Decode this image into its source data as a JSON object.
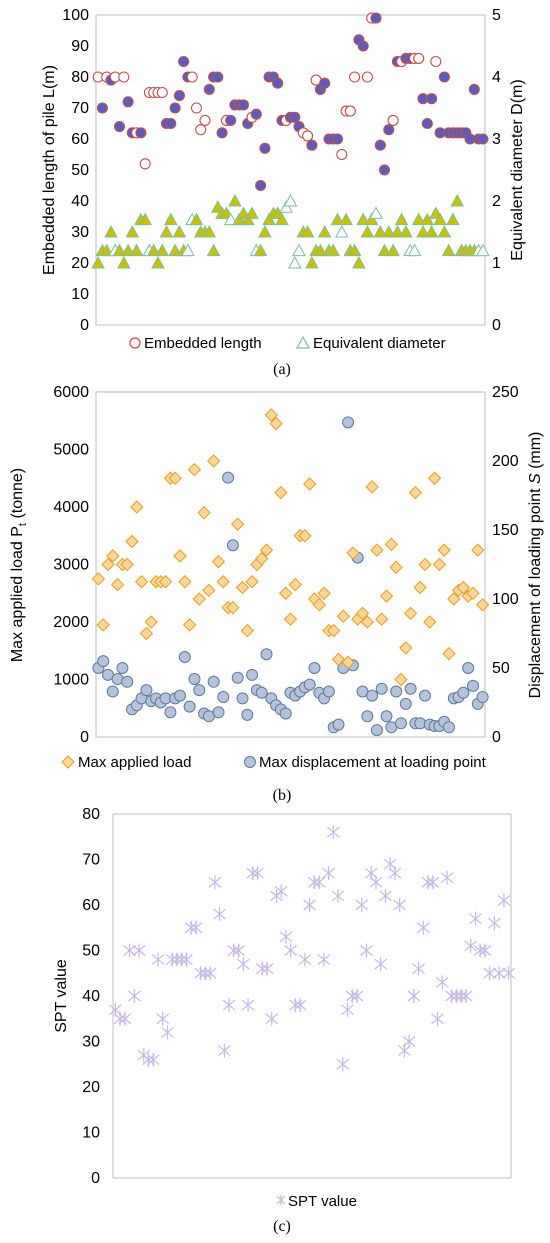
{
  "chart_data": [
    {
      "type": "scatter",
      "caption": "(a)",
      "ylabel": "Embedded length of pile L(m)",
      "y2label": "Equivalent diameter D(m)",
      "ylim": [
        0,
        100
      ],
      "y2lim": [
        0,
        5
      ],
      "yticks": [
        "0",
        "10",
        "20",
        "30",
        "40",
        "50",
        "60",
        "70",
        "80",
        "90",
        "100"
      ],
      "y2ticks": [
        "0",
        "1",
        "2",
        "3",
        "4",
        "5"
      ],
      "legend_position": "bottom",
      "colors": {
        "length_edge": "#c0504d",
        "length_fill": "#5b5bc0",
        "diam_edge": "#7fbf9a",
        "diam_fill": "#c8c000"
      },
      "series": [
        {
          "name": "Embedded length",
          "axis": "left",
          "marker": "circle",
          "y": [
            80,
            70,
            80,
            79,
            80,
            64,
            80,
            72,
            62,
            62,
            62,
            52,
            75,
            75,
            75,
            75,
            65,
            65,
            70,
            74,
            85,
            80,
            80,
            70,
            63,
            66,
            76,
            80,
            80,
            62,
            66,
            66,
            71,
            71,
            71,
            65,
            67,
            68,
            45,
            57,
            80,
            80,
            78,
            66,
            66,
            67,
            67,
            64,
            62,
            61,
            58,
            79,
            76,
            78,
            60,
            60,
            60,
            55,
            69,
            69,
            80,
            92,
            90,
            80,
            99,
            99,
            58,
            50,
            63,
            66,
            85,
            85,
            86,
            86,
            86,
            86,
            73,
            65,
            73,
            85,
            62,
            80,
            62,
            62,
            62,
            62,
            62,
            60,
            76,
            60,
            60
          ],
          "filled": [
            0,
            1,
            0,
            1,
            0,
            1,
            0,
            1,
            1,
            0,
            1,
            0,
            0,
            0,
            0,
            0,
            1,
            1,
            1,
            1,
            1,
            1,
            0,
            0,
            0,
            0,
            1,
            1,
            1,
            1,
            0,
            1,
            1,
            1,
            1,
            1,
            0,
            1,
            1,
            1,
            1,
            1,
            1,
            1,
            0,
            1,
            1,
            1,
            0,
            0,
            1,
            0,
            1,
            1,
            1,
            1,
            1,
            0,
            0,
            0,
            0,
            1,
            1,
            0,
            0,
            1,
            1,
            1,
            1,
            0,
            1,
            0,
            1,
            1,
            0,
            0,
            1,
            1,
            1,
            0,
            1,
            1,
            1,
            1,
            1,
            1,
            1,
            1,
            1,
            1,
            1
          ]
        },
        {
          "name": "Equivalent diameter",
          "axis": "right",
          "marker": "triangle",
          "y": [
            1.0,
            1.2,
            1.2,
            1.5,
            1.2,
            1.2,
            1.0,
            1.2,
            1.5,
            1.2,
            1.7,
            1.7,
            1.2,
            1.2,
            1.0,
            1.2,
            1.5,
            1.7,
            1.2,
            1.5,
            1.2,
            1.2,
            1.7,
            1.7,
            1.5,
            1.5,
            1.5,
            1.2,
            1.9,
            1.8,
            1.8,
            1.7,
            2.0,
            1.7,
            1.8,
            1.7,
            1.8,
            1.2,
            1.2,
            1.5,
            1.7,
            1.8,
            1.8,
            1.7,
            1.9,
            2.0,
            1.0,
            1.2,
            1.5,
            1.5,
            1.0,
            1.2,
            1.2,
            1.5,
            1.2,
            1.2,
            1.7,
            1.5,
            1.7,
            1.2,
            1.2,
            1.0,
            1.7,
            1.5,
            1.7,
            1.8,
            1.5,
            1.2,
            1.5,
            1.2,
            1.5,
            1.7,
            1.5,
            1.2,
            1.2,
            1.7,
            1.5,
            1.7,
            1.5,
            1.8,
            1.7,
            1.5,
            1.2,
            1.7,
            2.0,
            1.2,
            1.2,
            1.2,
            1.2,
            1.2,
            1.2
          ],
          "filled": [
            1,
            1,
            1,
            1,
            0,
            1,
            1,
            1,
            1,
            1,
            1,
            1,
            0,
            1,
            1,
            1,
            1,
            1,
            1,
            1,
            1,
            0,
            0,
            1,
            1,
            1,
            1,
            1,
            1,
            1,
            1,
            0,
            1,
            1,
            1,
            1,
            1,
            0,
            1,
            1,
            1,
            1,
            1,
            1,
            0,
            0,
            0,
            0,
            1,
            1,
            1,
            1,
            1,
            1,
            1,
            1,
            1,
            0,
            1,
            1,
            1,
            1,
            1,
            1,
            1,
            0,
            1,
            1,
            1,
            1,
            1,
            1,
            1,
            0,
            0,
            1,
            1,
            1,
            1,
            1,
            1,
            1,
            1,
            1,
            1,
            1,
            1,
            1,
            1,
            0,
            0
          ]
        }
      ]
    },
    {
      "type": "scatter",
      "caption": "(b)",
      "ylabel_main": "Max applied load P",
      "ylabel_sub": "t",
      "ylabel_tail": " (tonne)",
      "y2label_main": "Displacement of loading point ",
      "y2label_italic": "S",
      "y2label_tail": " (mm)",
      "ylim": [
        0,
        6000
      ],
      "y2lim": [
        0,
        250
      ],
      "yticks": [
        "0",
        "1000",
        "2000",
        "3000",
        "4000",
        "5000",
        "6000"
      ],
      "y2ticks": [
        "0",
        "50",
        "100",
        "150",
        "200",
        "250"
      ],
      "legend_position": "bottom",
      "colors": {
        "load_edge": "#e6a020",
        "load_fill": "#fbd79a",
        "disp_edge": "#5f7a99",
        "disp_fill": "#b4c3db"
      },
      "series": [
        {
          "name": "Max applied load",
          "axis": "left",
          "marker": "diamond",
          "y": [
            2750,
            1950,
            3000,
            3150,
            2650,
            3000,
            3000,
            3400,
            4000,
            2700,
            1800,
            2000,
            2700,
            2700,
            2700,
            4500,
            4500,
            3150,
            2700,
            1950,
            4650,
            2400,
            3900,
            2550,
            4800,
            3050,
            2700,
            2250,
            2250,
            3700,
            2600,
            1850,
            2700,
            3000,
            3100,
            3250,
            5600,
            5450,
            4250,
            2500,
            2050,
            2650,
            3500,
            3500,
            4400,
            2400,
            2300,
            2500,
            1850,
            1850,
            1350,
            2100,
            1300,
            3200,
            2050,
            2150,
            2000,
            4350,
            3250,
            2050,
            2450,
            3350,
            2950,
            1000,
            1550,
            2150,
            4250,
            2600,
            3000,
            2000,
            4500,
            3000,
            3250,
            1450,
            2400,
            2550,
            2600,
            2450,
            2500,
            3250,
            2300
          ],
          "x": [
            0,
            1,
            2,
            3,
            4,
            5,
            6,
            7,
            8,
            9,
            10,
            11,
            12,
            13,
            14,
            15,
            16,
            17,
            18,
            19,
            20,
            21,
            22,
            23,
            24,
            25,
            26,
            27,
            28,
            29,
            30,
            31,
            32,
            33,
            34,
            35,
            36,
            37,
            38,
            39,
            40,
            41,
            42,
            43,
            44,
            45,
            46,
            47,
            48,
            49,
            50,
            51,
            52,
            53,
            54,
            55,
            56,
            57,
            58,
            59,
            60,
            61,
            62,
            63,
            64,
            65,
            66,
            67,
            68,
            69,
            70,
            71,
            72,
            73,
            74,
            75,
            76,
            77,
            78,
            79,
            80
          ]
        },
        {
          "name": "Max displacement at loading point",
          "axis": "right",
          "marker": "circle",
          "y": [
            50,
            55,
            45,
            33,
            42,
            50,
            40,
            20,
            23,
            28,
            34,
            26,
            28,
            25,
            28,
            18,
            28,
            30,
            58,
            22,
            42,
            34,
            17,
            15,
            40,
            18,
            29,
            188,
            139,
            43,
            28,
            16,
            45,
            34,
            32,
            60,
            28,
            23,
            20,
            17,
            32,
            30,
            33,
            36,
            38,
            50,
            32,
            28,
            33,
            7,
            9,
            50,
            228,
            52,
            130,
            33,
            15,
            30,
            5,
            35,
            15,
            7,
            33,
            10,
            24,
            35,
            10,
            10,
            30,
            9,
            8,
            8,
            11,
            7,
            28,
            29,
            32,
            50,
            37,
            24,
            29
          ],
          "x": [
            0,
            1,
            2,
            3,
            4,
            5,
            6,
            7,
            8,
            9,
            10,
            11,
            12,
            13,
            14,
            15,
            16,
            17,
            18,
            19,
            20,
            21,
            22,
            23,
            24,
            25,
            26,
            27,
            28,
            29,
            30,
            31,
            32,
            33,
            34,
            35,
            36,
            37,
            38,
            39,
            40,
            41,
            42,
            43,
            44,
            45,
            46,
            47,
            48,
            49,
            50,
            51,
            52,
            53,
            54,
            55,
            56,
            57,
            58,
            59,
            60,
            61,
            62,
            63,
            64,
            65,
            66,
            67,
            68,
            69,
            70,
            71,
            72,
            73,
            74,
            75,
            76,
            77,
            78,
            79,
            80
          ]
        }
      ]
    },
    {
      "type": "scatter",
      "caption": "(c)",
      "ylabel": "SPT value",
      "ylim": [
        0,
        80
      ],
      "yticks": [
        "0",
        "10",
        "20",
        "30",
        "40",
        "50",
        "60",
        "70",
        "80"
      ],
      "legend_position": "bottom",
      "colors": {
        "marker": "#c7b7e3"
      },
      "series": [
        {
          "name": "SPT value",
          "marker": "star",
          "y": [
            37,
            35,
            35,
            50,
            40,
            50,
            27,
            26,
            26,
            48,
            35,
            32,
            48,
            48,
            48,
            48,
            55,
            55,
            45,
            45,
            45,
            65,
            58,
            28,
            38,
            50,
            50,
            47,
            38,
            67,
            67,
            46,
            46,
            35,
            62,
            63,
            53,
            50,
            38,
            38,
            48,
            60,
            65,
            65,
            48,
            67,
            76,
            62,
            25,
            37,
            40,
            40,
            60,
            50,
            67,
            65,
            47,
            62,
            69,
            67,
            60,
            28,
            30,
            40,
            46,
            55,
            65,
            65,
            35,
            43,
            66,
            40,
            40,
            40,
            40,
            51,
            57,
            50,
            50,
            45,
            56,
            45,
            61,
            45
          ],
          "x": [
            0,
            1,
            2,
            3,
            4,
            5,
            6,
            7,
            8,
            9,
            10,
            11,
            12,
            13,
            14,
            15,
            16,
            17,
            18,
            19,
            20,
            21,
            22,
            23,
            24,
            25,
            26,
            27,
            28,
            29,
            30,
            31,
            32,
            33,
            34,
            35,
            36,
            37,
            38,
            39,
            40,
            41,
            42,
            43,
            44,
            45,
            46,
            47,
            48,
            49,
            50,
            51,
            52,
            53,
            54,
            55,
            56,
            57,
            58,
            59,
            60,
            61,
            62,
            63,
            64,
            65,
            66,
            67,
            68,
            69,
            70,
            71,
            72,
            73,
            74,
            75,
            76,
            77,
            78,
            79,
            80,
            81,
            82,
            83
          ]
        }
      ]
    }
  ]
}
